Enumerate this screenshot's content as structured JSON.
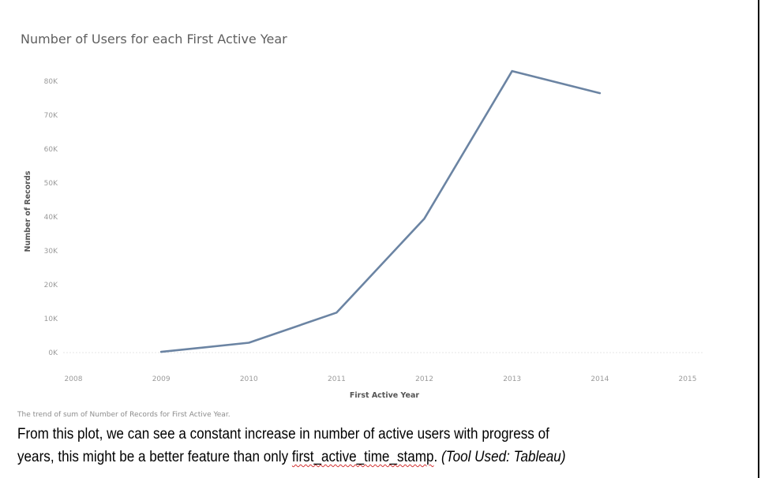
{
  "chart_data": {
    "type": "line",
    "title": "Number of Users for each First Active Year",
    "xlabel": "First Active Year",
    "ylabel": "Number of Records",
    "x": [
      2009,
      2010,
      2011,
      2012,
      2013,
      2014
    ],
    "series": [
      {
        "values": [
          200,
          2900,
          11800,
          39500,
          83000,
          76500
        ]
      }
    ],
    "xticks": [
      "2008",
      "2009",
      "2010",
      "2011",
      "2012",
      "2013",
      "2014",
      "2015"
    ],
    "yticks": [
      "0K",
      "10K",
      "20K",
      "30K",
      "40K",
      "50K",
      "60K",
      "70K",
      "80K"
    ],
    "xlim": [
      2008,
      2015
    ],
    "ylim": [
      0,
      80000
    ],
    "grid": false,
    "line_color": "#6b84a3",
    "caption": "The trend of sum of Number of Records for First Active Year."
  },
  "description": {
    "line1": "From this plot, we can see a constant increase in number of active users with progress of",
    "line2_start": "years, this might be a better feature than only ",
    "line2_term": "first_active_time_stamp",
    "line2_dot": ". ",
    "line2_tool": "(Tool Used: Tableau)"
  }
}
